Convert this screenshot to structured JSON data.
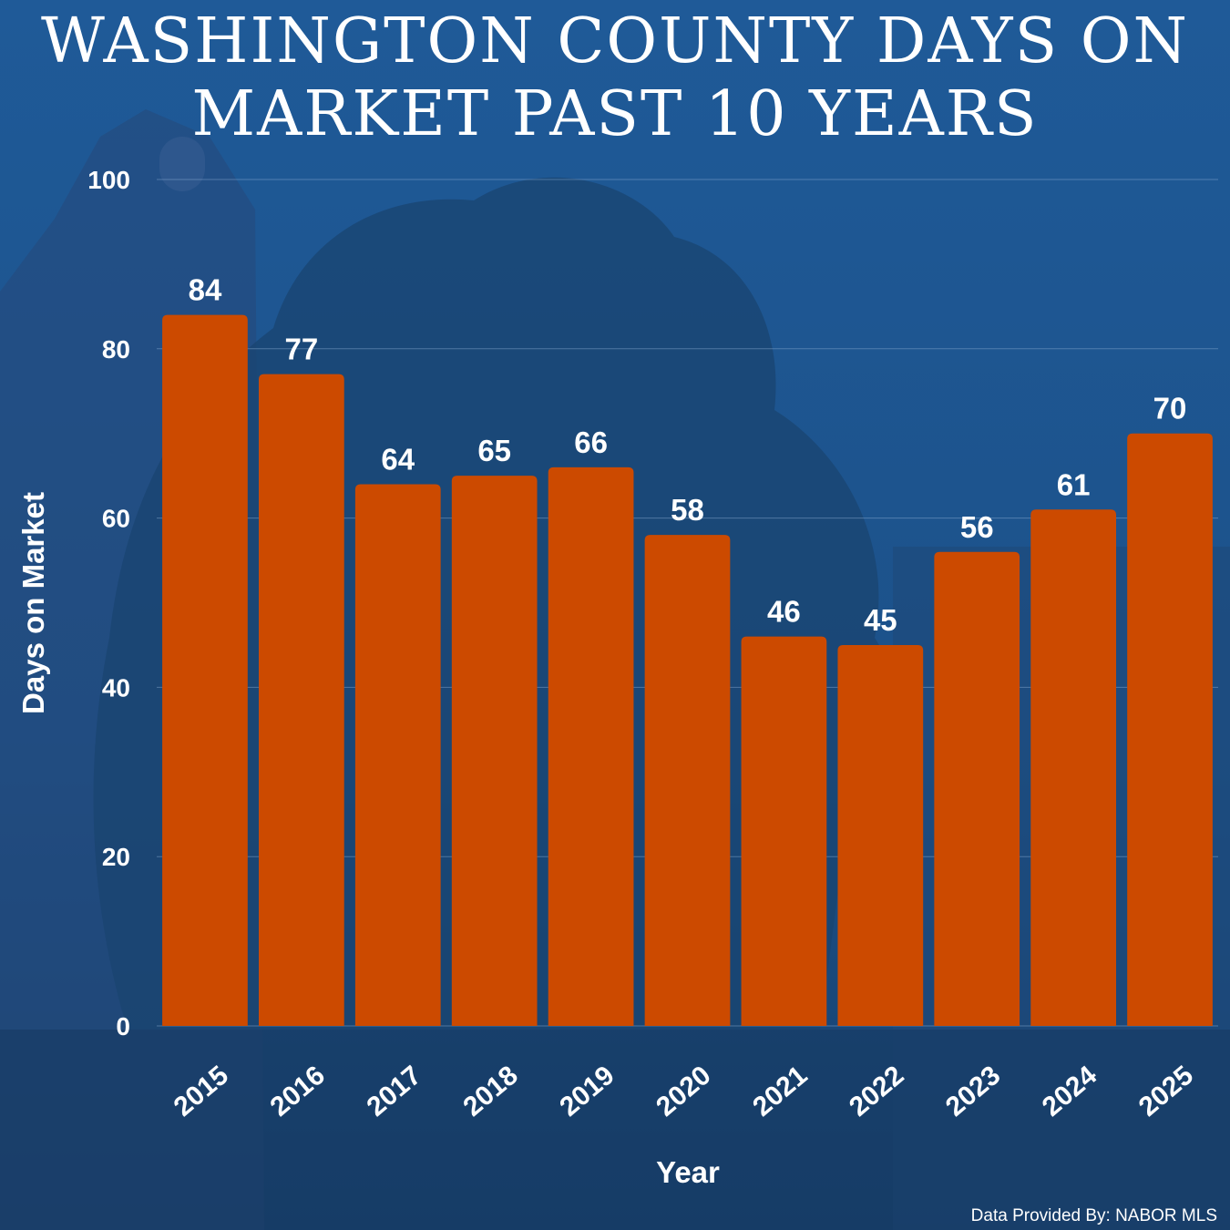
{
  "title_line1": "WASHINGTON COUNTY DAYS ON",
  "title_line2": "MARKET PAST 10 YEARS",
  "source": "Data Provided By: NABOR MLS",
  "colors": {
    "background": "#1d4f86",
    "bar": "#cc4a00",
    "text": "#ffffff",
    "grid": "#8fb0d6"
  },
  "chart_data": {
    "type": "bar",
    "categories": [
      "2015",
      "2016",
      "2017",
      "2018",
      "2019",
      "2020",
      "2021",
      "2022",
      "2023",
      "2024",
      "2025"
    ],
    "values": [
      84,
      77,
      64,
      65,
      66,
      58,
      46,
      45,
      56,
      61,
      70
    ],
    "xlabel": "Year",
    "ylabel": "Days on Market",
    "ylim": [
      0,
      100
    ],
    "yticks": [
      0,
      20,
      40,
      60,
      80,
      100
    ],
    "grid": true,
    "data_labels": true
  }
}
